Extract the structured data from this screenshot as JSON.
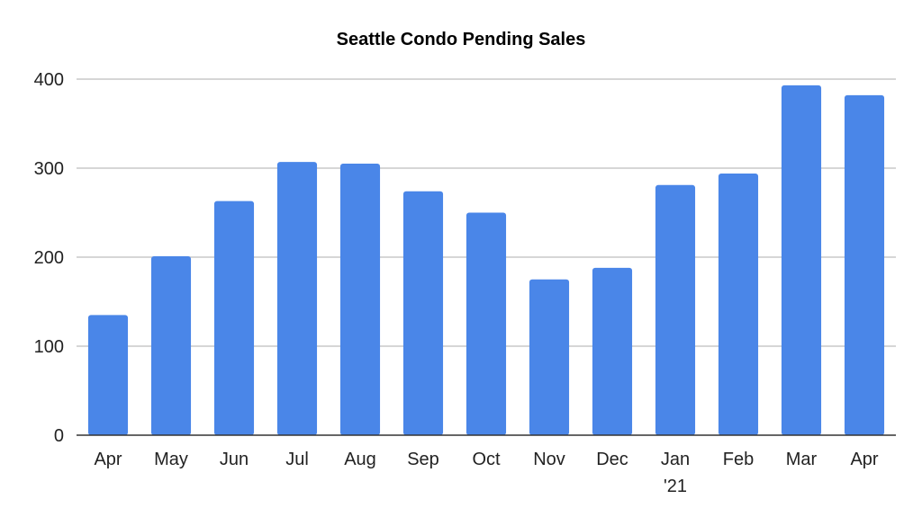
{
  "chart_data": {
    "type": "bar",
    "title": "Seattle Condo Pending Sales",
    "xlabel": "",
    "ylabel": "",
    "categories": [
      "Apr",
      "May",
      "Jun",
      "Jul",
      "Aug",
      "Sep",
      "Oct",
      "Nov",
      "Dec",
      "Jan '21",
      "Feb",
      "Mar",
      "Apr"
    ],
    "values": [
      135,
      201,
      263,
      307,
      305,
      274,
      250,
      175,
      188,
      281,
      294,
      393,
      382
    ],
    "ylim": [
      0,
      400
    ],
    "yticks": [
      0,
      100,
      200,
      300,
      400
    ],
    "grid": true,
    "legend": "none",
    "bar_color": "#4a86e8"
  }
}
